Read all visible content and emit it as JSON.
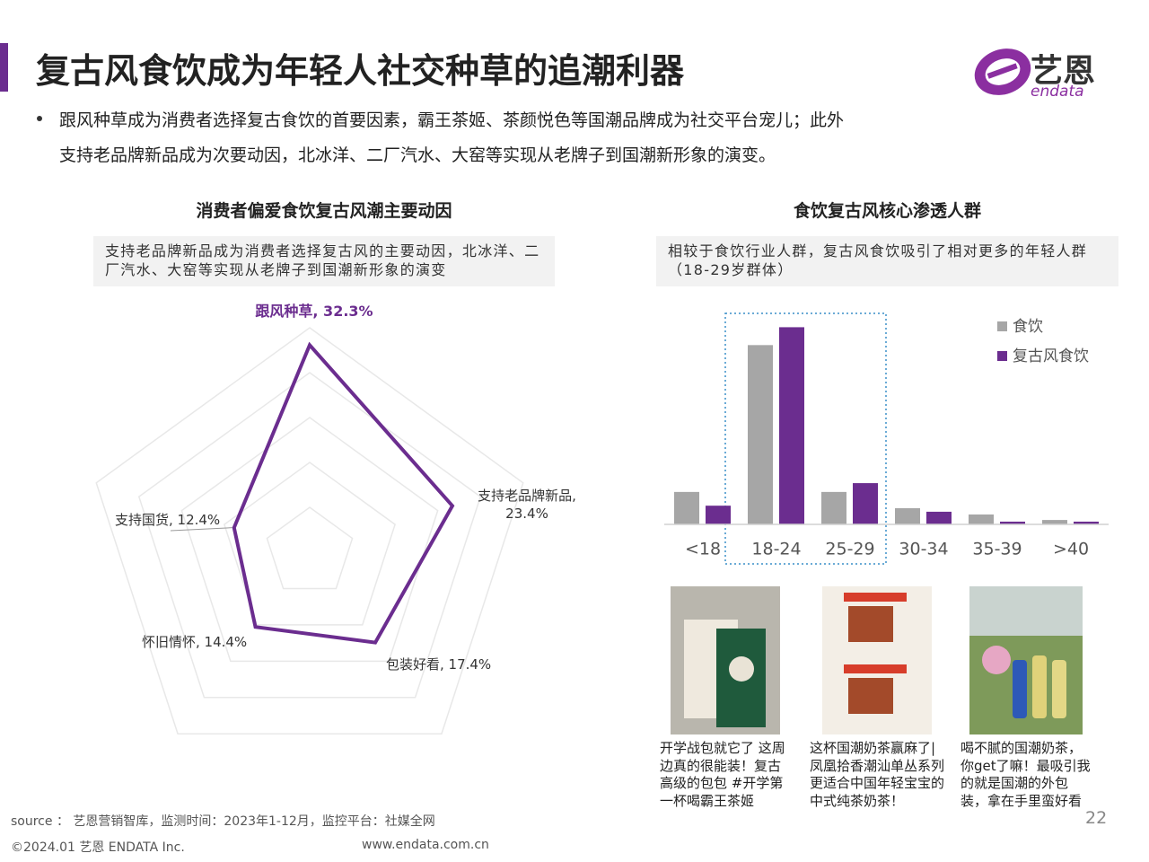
{
  "header": {
    "title": "复古风食饮成为年轻人社交种草的追潮利器",
    "logo": {
      "name": "艺恩",
      "sub": "endata"
    },
    "bullet": [
      "跟风种草成为消费者选择复古食饮的首要因素，霸王茶姬、茶颜悦色等国潮品牌成为社交平台宠儿；此外",
      "支持老品牌新品成为次要动因，北冰洋、二厂汽水、大窑等实现从老牌子到国潮新形象的演变。"
    ]
  },
  "chart_data": [
    {
      "type": "radar",
      "title": "消费者偏爱食饮复古风潮主要动因",
      "note": "支持老品牌新品成为消费者选择复古风的主要动因，北冰洋、二厂汽水、大窑等实现从老牌子到国潮新形象的演变",
      "values": [
        32.3,
        23.4,
        17.4,
        14.4,
        12.4
      ],
      "value_labels": [
        "跟风种草, 32.3%",
        "支持老品牌新品, 23.4%",
        "包装好看, 17.4%",
        "怀旧情怀, 14.4%",
        "支持国货, 12.4%"
      ],
      "rlim": [
        0,
        35
      ],
      "rticks": [
        7,
        14,
        21,
        28,
        35
      ],
      "color": "#6b2d8f"
    },
    {
      "type": "bar",
      "title": "食饮复古风核心渗透人群",
      "note": "相较于食饮行业人群，复古风食饮吸引了相对更多的年轻人群（18-29岁群体）",
      "categories": [
        "<18",
        "18-24",
        "25-29",
        "30-34",
        "35-39",
        ">40"
      ],
      "series": [
        {
          "name": "食饮",
          "color": "#a6a6a6",
          "values": [
            11.8,
            65.2,
            11.8,
            5.9,
            3.6,
            1.6
          ]
        },
        {
          "name": "复古风食饮",
          "color": "#6b2d8f",
          "values": [
            6.8,
            71.7,
            15.0,
            4.6,
            1.0,
            1.0
          ]
        }
      ],
      "ylim": [
        0,
        80
      ],
      "legend": "right"
    }
  ],
  "posts": [
    {
      "caption": "开学战包就它了 这周边真的很能装！复古高级的包包 #开学第一杯喝霸王茶姬"
    },
    {
      "caption": "这杯国潮奶茶赢麻了|凤凰拾香潮汕单丛系列 更适合中国年轻宝宝的中式纯茶奶茶！"
    },
    {
      "caption": "喝不腻的国潮奶茶，你get了嘛！最吸引我的就是国潮的外包装，拿在手里蛮好看"
    }
  ],
  "footer": {
    "source": "source ： 艺恩营销智库，监测时间：2023年1-12月，监控平台：社媒全网",
    "copyright": "©2024.01  艺恩 ENDATA Inc.",
    "website": "www.endata.com.cn",
    "page": "22"
  }
}
